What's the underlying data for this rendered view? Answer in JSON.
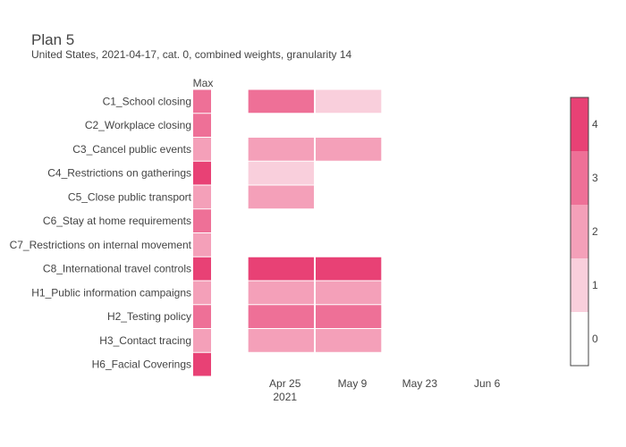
{
  "chart_data": {
    "type": "heatmap",
    "title": "Plan 5",
    "subtitle": "United States, 2021-04-17, cat. 0, combined weights, granularity 14",
    "max_column_label": "Max",
    "categories": [
      "C1_School closing",
      "C2_Workplace closing",
      "C3_Cancel public events",
      "C4_Restrictions on gatherings",
      "C5_Close public transport",
      "C6_Stay at home requirements",
      "C7_Restrictions on internal movement",
      "C8_International travel controls",
      "H1_Public information campaigns",
      "H2_Testing policy",
      "H3_Contact tracing",
      "H6_Facial Coverings"
    ],
    "max_values": [
      3,
      3,
      2,
      4,
      2,
      3,
      2,
      4,
      2,
      3,
      2,
      4
    ],
    "periods": [
      "2021-04-17",
      "2021-05-01"
    ],
    "values": [
      [
        3,
        1
      ],
      [
        null,
        null
      ],
      [
        2,
        2
      ],
      [
        1,
        null
      ],
      [
        2,
        null
      ],
      [
        null,
        null
      ],
      [
        null,
        null
      ],
      [
        4,
        4
      ],
      [
        2,
        2
      ],
      [
        3,
        3
      ],
      [
        2,
        2
      ],
      [
        null,
        null
      ]
    ],
    "x_ticks": [
      {
        "date": "2021-04-25",
        "label": "Apr 25",
        "sublabel": "2021"
      },
      {
        "date": "2021-05-09",
        "label": "May 9",
        "sublabel": ""
      },
      {
        "date": "2021-05-23",
        "label": "May 23",
        "sublabel": ""
      },
      {
        "date": "2021-06-06",
        "label": "Jun 6",
        "sublabel": ""
      }
    ],
    "x_range": [
      "2021-04-10",
      "2021-06-20"
    ],
    "period_days": 14,
    "colorscale": {
      "levels": [
        0,
        1,
        2,
        3,
        4
      ],
      "colors": [
        "#ffffff",
        "#f9cfdc",
        "#f4a0b9",
        "#ee7097",
        "#e84175"
      ]
    },
    "colorbar_ticks": [
      "0",
      "1",
      "2",
      "3",
      "4"
    ],
    "grid": false
  }
}
